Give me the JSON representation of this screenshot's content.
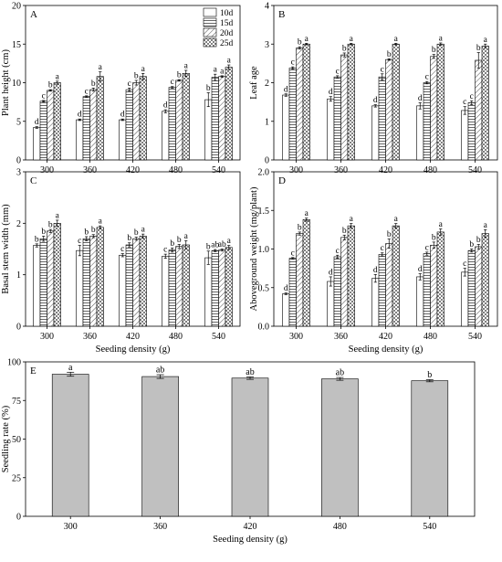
{
  "chart_data": [
    {
      "panel": "A",
      "type": "bar",
      "categories": [
        "300",
        "360",
        "420",
        "480",
        "540"
      ],
      "xlabel": "",
      "ylabel": "Plant height (cm)",
      "ylim": [
        0,
        20
      ],
      "yticks": [
        "0",
        "5",
        "10",
        "15",
        "20"
      ],
      "legend": {
        "placement": "top-right",
        "entries": [
          "10d",
          "15d",
          "20d",
          "25d"
        ]
      },
      "series": [
        {
          "name": "10d",
          "values": [
            4.2,
            5.2,
            5.2,
            6.3,
            7.8
          ],
          "errors": [
            0.1,
            0.1,
            0.1,
            0.2,
            0.9
          ],
          "letters": [
            "d",
            "d",
            "d",
            "d",
            "b"
          ]
        },
        {
          "name": "15d",
          "values": [
            7.6,
            8.2,
            9.1,
            9.4,
            10.7
          ],
          "errors": [
            0.1,
            0.1,
            0.2,
            0.1,
            0.4
          ],
          "letters": [
            "c",
            "c",
            "c",
            "c",
            "a"
          ]
        },
        {
          "name": "20d",
          "values": [
            9.0,
            9.1,
            10.0,
            10.3,
            10.8
          ],
          "errors": [
            0.1,
            0.2,
            0.3,
            0.1,
            0.1
          ],
          "letters": [
            "b",
            "b",
            "b",
            "b",
            "a"
          ]
        },
        {
          "name": "25d",
          "values": [
            10.0,
            10.8,
            10.8,
            11.2,
            12.0
          ],
          "errors": [
            0.2,
            0.6,
            0.4,
            0.4,
            0.3
          ],
          "letters": [
            "a",
            "a",
            "a",
            "a",
            "a"
          ]
        }
      ]
    },
    {
      "panel": "B",
      "type": "bar",
      "categories": [
        "300",
        "360",
        "420",
        "480",
        "540"
      ],
      "xlabel": "",
      "ylabel": "Leaf age",
      "ylim": [
        0,
        4
      ],
      "yticks": [
        "0",
        "1",
        "2",
        "3",
        "4"
      ],
      "series": [
        {
          "name": "10d",
          "values": [
            1.68,
            1.58,
            1.4,
            1.4,
            1.28
          ],
          "errors": [
            0.03,
            0.06,
            0.03,
            0.08,
            0.1
          ],
          "letters": [
            "d",
            "d",
            "d",
            "d",
            "c"
          ]
        },
        {
          "name": "15d",
          "values": [
            2.38,
            2.15,
            2.15,
            2.0,
            1.48
          ],
          "errors": [
            0.03,
            0.03,
            0.08,
            0.03,
            0.05
          ],
          "letters": [
            "c",
            "c",
            "c",
            "c",
            "c"
          ]
        },
        {
          "name": "20d",
          "values": [
            2.9,
            2.72,
            2.6,
            2.68,
            2.58
          ],
          "errors": [
            0.03,
            0.05,
            0.02,
            0.05,
            0.2
          ],
          "letters": [
            "b",
            "b",
            "b",
            "b",
            "b"
          ]
        },
        {
          "name": "25d",
          "values": [
            3.0,
            3.0,
            3.0,
            3.0,
            2.95
          ],
          "errors": [
            0.02,
            0.02,
            0.02,
            0.03,
            0.05
          ],
          "letters": [
            "a",
            "a",
            "a",
            "a",
            "a"
          ]
        }
      ]
    },
    {
      "panel": "C",
      "type": "bar",
      "categories": [
        "300",
        "360",
        "420",
        "480",
        "540"
      ],
      "xlabel": "Seeding density (g)",
      "ylabel": "Basal stem width (mm)",
      "ylim": [
        0,
        3
      ],
      "yticks": [
        "0",
        "1",
        "2",
        "3"
      ],
      "series": [
        {
          "name": "10d",
          "values": [
            1.57,
            1.47,
            1.38,
            1.36,
            1.33
          ],
          "errors": [
            0.03,
            0.1,
            0.03,
            0.04,
            0.13
          ],
          "letters": [
            "b",
            "c",
            "c",
            "c",
            "b"
          ]
        },
        {
          "name": "15d",
          "values": [
            1.7,
            1.7,
            1.58,
            1.48,
            1.47
          ],
          "errors": [
            0.05,
            0.04,
            0.04,
            0.04,
            0.02
          ],
          "letters": [
            "b",
            "b",
            "b",
            "b",
            "ab"
          ]
        },
        {
          "name": "20d",
          "values": [
            1.85,
            1.75,
            1.7,
            1.55,
            1.48
          ],
          "errors": [
            0.03,
            0.03,
            0.03,
            0.04,
            0.02
          ],
          "letters": [
            "b",
            "b",
            "b",
            "b",
            "ab"
          ]
        },
        {
          "name": "25d",
          "values": [
            2.0,
            1.92,
            1.75,
            1.58,
            1.53
          ],
          "errors": [
            0.06,
            0.03,
            0.04,
            0.08,
            0.04
          ],
          "letters": [
            "a",
            "a",
            "a",
            "a",
            "a"
          ]
        }
      ]
    },
    {
      "panel": "D",
      "type": "bar",
      "categories": [
        "300",
        "360",
        "420",
        "480",
        "540"
      ],
      "xlabel": "Seeding density (g)",
      "ylabel": "Aboveground weight (mg/plant)",
      "ylim": [
        0,
        2
      ],
      "yticks": [
        "0.0",
        "0.5",
        "1.0",
        "1.5",
        "2.0"
      ],
      "series": [
        {
          "name": "10d",
          "values": [
            0.42,
            0.58,
            0.62,
            0.64,
            0.7
          ],
          "errors": [
            0.01,
            0.06,
            0.05,
            0.04,
            0.05
          ],
          "letters": [
            "d",
            "d",
            "d",
            "d",
            "c"
          ]
        },
        {
          "name": "15d",
          "values": [
            0.88,
            0.9,
            0.93,
            0.94,
            0.98
          ],
          "errors": [
            0.01,
            0.02,
            0.02,
            0.02,
            0.02
          ],
          "letters": [
            "c",
            "c",
            "c",
            "c",
            "b"
          ]
        },
        {
          "name": "20d",
          "values": [
            1.2,
            1.15,
            1.07,
            1.05,
            1.03
          ],
          "errors": [
            0.02,
            0.03,
            0.06,
            0.04,
            0.03
          ],
          "letters": [
            "b",
            "b",
            "b",
            "b",
            "b"
          ]
        },
        {
          "name": "25d",
          "values": [
            1.38,
            1.3,
            1.3,
            1.22,
            1.2
          ],
          "errors": [
            0.02,
            0.03,
            0.03,
            0.04,
            0.05
          ],
          "letters": [
            "a",
            "a",
            "a",
            "a",
            "a"
          ]
        }
      ]
    },
    {
      "panel": "E",
      "type": "bar",
      "categories": [
        "300",
        "360",
        "420",
        "480",
        "540"
      ],
      "xlabel": "Seeding density (g)",
      "ylabel": "Seedling rate (%)",
      "ylim": [
        0,
        100
      ],
      "yticks": [
        "0",
        "25",
        "50",
        "75",
        "100"
      ],
      "series": [
        {
          "name": "",
          "values": [
            92.0,
            90.5,
            89.5,
            89.0,
            87.8
          ],
          "errors": [
            1.3,
            1.2,
            0.8,
            0.9,
            0.7
          ],
          "letters": [
            "a",
            "ab",
            "ab",
            "ab",
            "b"
          ]
        }
      ]
    }
  ],
  "colors": {
    "bar_fill": "#ffffff",
    "bar_stroke": "#000000",
    "single_bar_fill": "#c0c0c0",
    "frame": "#000000"
  },
  "patterns": [
    "blank",
    "horizontal-lines",
    "diagonal-lines",
    "crosshatch"
  ]
}
